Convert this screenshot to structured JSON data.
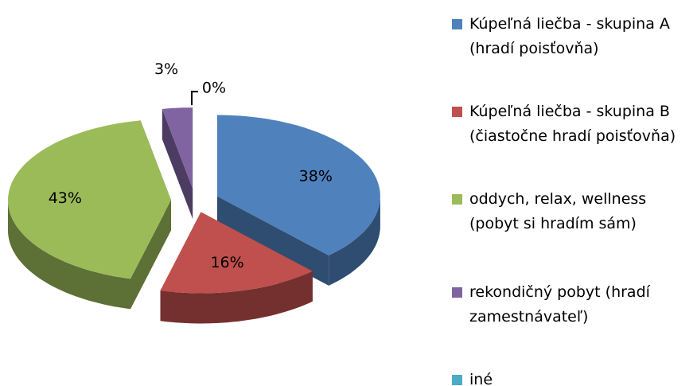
{
  "chart_data": {
    "type": "pie3d",
    "categories": [
      "Kúpeľná liečba - skupina A (hradí poisťovňa)",
      "Kúpeľná liečba - skupina B (čiastočne hradí poisťovňa)",
      "oddych, relax, wellness (pobyt si hradím sám)",
      "rekondičný pobyt (hradí zamestnávateľ)",
      "iné"
    ],
    "values": [
      38,
      16,
      43,
      3,
      0
    ],
    "value_labels": [
      "38%",
      "16%",
      "43%",
      "3%",
      "0%"
    ],
    "colors": [
      "#4f81bd",
      "#c0504d",
      "#9bbb59",
      "#8064a2",
      "#4bacc6"
    ],
    "legend": "right"
  }
}
